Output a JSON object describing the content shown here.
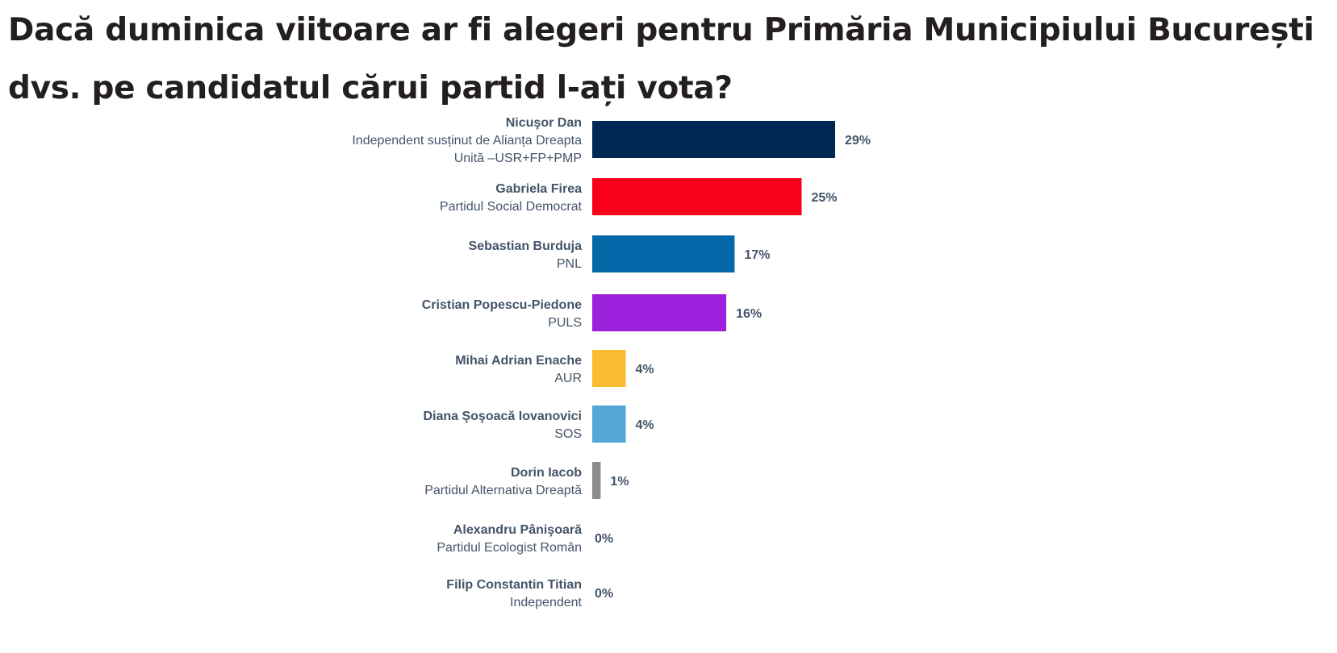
{
  "title": "Dacă duminica viitoare ar fi alegeri pentru Primăria Municipiului București dvs. pe candidatul cărui partid l-ați vota?",
  "chart_data": {
    "type": "bar",
    "orientation": "horizontal",
    "categories": [
      {
        "name": "Nicuşor Dan",
        "party_lines": [
          "Independent susținut de Alianța Dreapta",
          "Unită –USR+FP+PMP"
        ],
        "value": 29,
        "label": "29%",
        "color": "#002855"
      },
      {
        "name": "Gabriela Firea",
        "party_lines": [
          "Partidul Social Democrat"
        ],
        "value": 25,
        "label": "25%",
        "color": "#f70019"
      },
      {
        "name": "Sebastian Burduja",
        "party_lines": [
          "PNL"
        ],
        "value": 17,
        "label": "17%",
        "color": "#0468a8"
      },
      {
        "name": "Cristian Popescu-Piedone",
        "party_lines": [
          "PULS"
        ],
        "value": 16,
        "label": "16%",
        "color": "#9c21dc"
      },
      {
        "name": "Mihai Adrian Enache",
        "party_lines": [
          "AUR"
        ],
        "value": 4,
        "label": "4%",
        "color": "#fcbc31"
      },
      {
        "name": "Diana Şoşoacă Iovanovici",
        "party_lines": [
          "SOS"
        ],
        "value": 4,
        "label": "4%",
        "color": "#54a6d6"
      },
      {
        "name": "Dorin Iacob",
        "party_lines": [
          "Partidul Alternativa Dreaptă"
        ],
        "value": 1,
        "label": "1%",
        "color": "#8c8c8c"
      },
      {
        "name": "Alexandru Pânişoară",
        "party_lines": [
          "Partidul Ecologist Român"
        ],
        "value": 0,
        "label": "0%",
        "color": "#8c8c8c"
      },
      {
        "name": "Filip Constantin Titian",
        "party_lines": [
          "Independent"
        ],
        "value": 0,
        "label": "0%",
        "color": "#8c8c8c"
      }
    ],
    "unit": "%",
    "xlim": [
      0,
      29
    ],
    "grid": false,
    "legend": "none"
  }
}
